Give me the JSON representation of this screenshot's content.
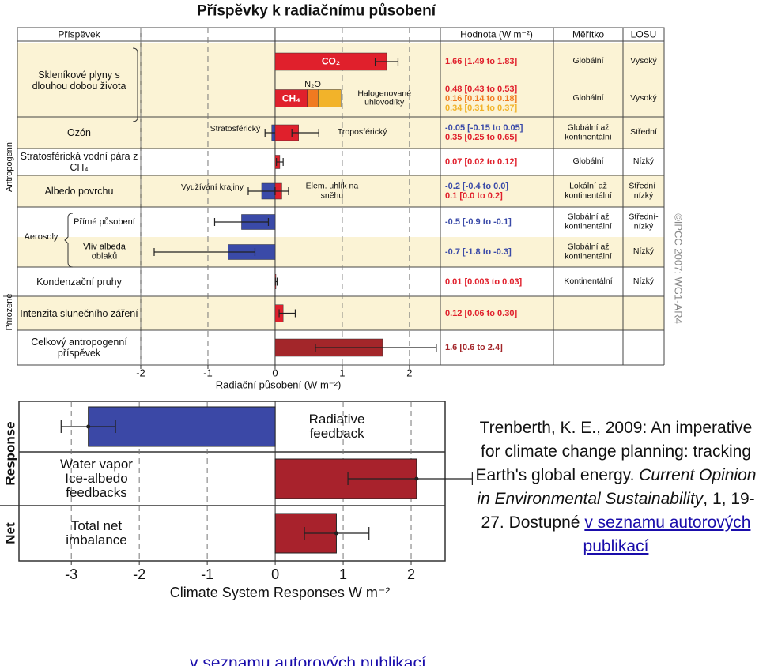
{
  "chart_data": [
    {
      "type": "bar",
      "title": "Příspěvky k radiačnímu působení",
      "xlabel": "Radiační působení (W m⁻²)",
      "xlim": [
        -2,
        2.46
      ],
      "xticks": [
        -2,
        -1,
        0,
        1,
        2
      ],
      "grid": true,
      "headers": {
        "label": "Příspěvek",
        "value": "Hodnota (W m⁻²)",
        "scale": "Měřítko",
        "losu": "LOSU"
      },
      "side_labels": [
        "Antropogenní",
        "Přirozené"
      ],
      "credit": "©IPCC 2007: WG1-AR4",
      "rows": [
        {
          "label": "Skleníkové plyny s dlouhou dobou života",
          "subrows": [
            {
              "bars": [
                {
                  "name": "CO₂",
                  "name_position": "inside",
                  "value": 1.66,
                  "low": 1.49,
                  "high": 1.83,
                  "value_label": "1.66 [1.49 to 1.83]",
                  "color": "#e0202c"
                }
              ],
              "scale": "Globální",
              "losu": "Vysoký"
            },
            {
              "bars": [
                {
                  "name": "CH₄",
                  "name_position": "inside",
                  "value": 0.48,
                  "value_label": "0.48 [0.43 to 0.53]",
                  "color": "#e0202c"
                },
                {
                  "name": "N₂O",
                  "name_position": "above",
                  "value": 0.16,
                  "value_label": "0.16 [0.14 to 0.18]",
                  "color": "#f07a20",
                  "stacked": true
                },
                {
                  "name": "Halogenované uhlovodíky",
                  "name_position": "right",
                  "value": 0.34,
                  "value_label": "0.34 [0.31 to 0.37]",
                  "color": "#f2b32a",
                  "stacked": true
                }
              ],
              "scale": "Globální",
              "losu": "Vysoký"
            }
          ]
        },
        {
          "label": "Ozón",
          "bars": [
            {
              "name": "Stratosférický",
              "name_position": "left",
              "value": -0.05,
              "low": -0.15,
              "high": 0.05,
              "value_label": "-0.05 [-0.15 to 0.05]",
              "color": "#3a4aa8"
            },
            {
              "name": "Troposférický",
              "name_position": "right",
              "value": 0.35,
              "low": 0.25,
              "high": 0.65,
              "value_label": "0.35 [0.25 to 0.65]",
              "color": "#e0202c"
            }
          ],
          "scale": "Globální až kontinentální",
          "losu": "Střední"
        },
        {
          "label": "Stratosférická vodní pára z CH₄",
          "bars": [
            {
              "value": 0.07,
              "low": 0.02,
              "high": 0.12,
              "value_label": "0.07 [0.02 to 0.12]",
              "color": "#e0202c"
            }
          ],
          "scale": "Globální",
          "losu": "Nízký"
        },
        {
          "label": "Albedo povrchu",
          "bars": [
            {
              "name": "Využívání krajiny",
              "name_position": "left",
              "value": -0.2,
              "low": -0.4,
              "high": 0.0,
              "value_label": "-0.2 [-0.4 to 0.0]",
              "color": "#3a4aa8"
            },
            {
              "name": "Elem. uhlík na sněhu",
              "name_position": "right",
              "value": 0.1,
              "low": 0.0,
              "high": 0.2,
              "value_label": "0.1 [0.0 to 0.2]",
              "color": "#e0202c"
            }
          ],
          "scale": "Lokální až kontinentální",
          "losu": "Střední-nízký"
        },
        {
          "label": "Aerosoly",
          "subrows": [
            {
              "label": "Přímé působení",
              "bars": [
                {
                  "value": -0.5,
                  "low": -0.9,
                  "high": -0.1,
                  "value_label": "-0.5 [-0.9 to -0.1]",
                  "color": "#3a4aa8"
                }
              ],
              "scale": "Globální až kontinentální",
              "losu": "Střední-nízký"
            },
            {
              "label": "Vliv albeda oblaků",
              "bars": [
                {
                  "value": -0.7,
                  "low": -1.8,
                  "high": -0.3,
                  "value_label": "-0.7 [-1.8 to -0.3]",
                  "color": "#3a4aa8"
                }
              ],
              "scale": "Globální až kontinentální",
              "losu": "Nízký"
            }
          ]
        },
        {
          "label": "Kondenzační pruhy",
          "bars": [
            {
              "value": 0.01,
              "low": 0.003,
              "high": 0.03,
              "value_label": "0.01 [0.003 to 0.03]",
              "color": "#e0202c"
            }
          ],
          "scale": "Kontinentální",
          "losu": "Nízký"
        },
        {
          "label": "Intenzita slunečního záření",
          "bars": [
            {
              "value": 0.12,
              "low": 0.06,
              "high": 0.3,
              "value_label": "0.12 [0.06 to 0.30]",
              "color": "#e0202c"
            }
          ]
        },
        {
          "label": "Celkový antropogenní příspěvek",
          "bars": [
            {
              "value": 1.6,
              "low": 0.6,
              "high": 2.4,
              "value_label": "1.6 [0.6 to 2.4]",
              "color": "#a3262a"
            }
          ]
        }
      ]
    },
    {
      "type": "bar",
      "xlabel": "Climate System Responses W m⁻²",
      "xlim": [
        -3.77,
        2.5
      ],
      "xticks": [
        -3,
        -2,
        -1,
        0,
        1,
        2
      ],
      "grid": true,
      "side_labels": [
        "Response",
        "Net"
      ],
      "categories": [
        "Radiative\nfeedback",
        "Water vapor\nIce-albedo\nfeedbacks",
        "Total net\nimbalance"
      ],
      "values": [
        -2.75,
        2.08,
        0.9
      ],
      "low": [
        -3.15,
        1.07,
        0.43
      ],
      "high": [
        -2.35,
        2.9,
        1.38
      ],
      "colors": [
        "#3b48a6",
        "#a8222c",
        "#a8222c"
      ]
    }
  ],
  "citation": {
    "text": "Trenberth, K. E., 2009: An imperative for climate change planning: tracking Earth's global energy.",
    "journal": "Current Opinion in Environmental Sustainability",
    "details": ", 1, 19-27. Dostupné",
    "link": "v seznamu autorových publikací"
  },
  "footer_link": "v seznamu autorových publikací"
}
